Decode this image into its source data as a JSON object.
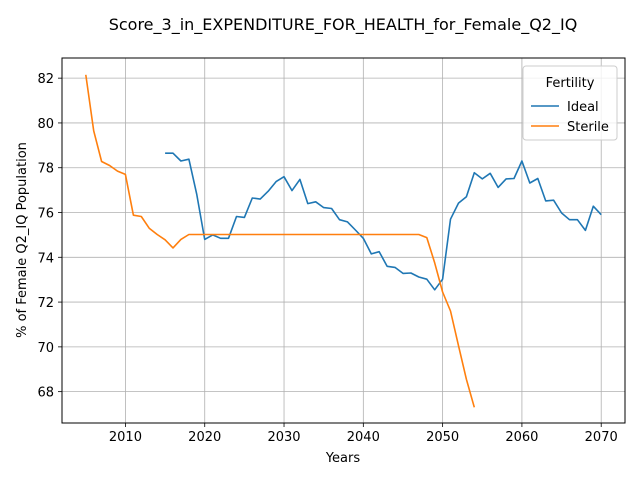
{
  "chart_data": {
    "type": "line",
    "title": "Score_3_in_EXPENDITURE_FOR_HEALTH_for_Female_Q2_IQ",
    "xlabel": "Years",
    "ylabel": "% of Female Q2_IQ Population",
    "xlim": [
      2002,
      2073
    ],
    "ylim": [
      66.6,
      82.9
    ],
    "xticks": [
      2010,
      2020,
      2030,
      2040,
      2050,
      2060,
      2070
    ],
    "yticks": [
      68,
      70,
      72,
      74,
      76,
      78,
      80,
      82
    ],
    "grid": true,
    "legend": {
      "title": "Fertility",
      "placement": "top-right"
    },
    "series": [
      {
        "name": "Ideal",
        "color": "#1f77b4",
        "x": [
          2015,
          2016,
          2017,
          2018,
          2019,
          2020,
          2021,
          2022,
          2023,
          2024,
          2025,
          2026,
          2027,
          2028,
          2029,
          2030,
          2031,
          2032,
          2033,
          2034,
          2035,
          2036,
          2037,
          2038,
          2039,
          2040,
          2041,
          2042,
          2043,
          2044,
          2045,
          2046,
          2047,
          2048,
          2049,
          2050,
          2051,
          2052,
          2053,
          2054,
          2055,
          2056,
          2057,
          2058,
          2059,
          2060,
          2061,
          2062,
          2063,
          2064,
          2065,
          2066,
          2067,
          2068,
          2069,
          2070
        ],
        "y": [
          78.65,
          78.65,
          78.3,
          78.38,
          76.8,
          74.8,
          75.0,
          74.85,
          74.85,
          75.82,
          75.78,
          76.65,
          76.6,
          76.95,
          77.38,
          77.6,
          76.98,
          77.48,
          76.4,
          76.48,
          76.22,
          76.18,
          75.68,
          75.58,
          75.22,
          74.85,
          74.15,
          74.25,
          73.6,
          73.55,
          73.28,
          73.3,
          73.12,
          73.02,
          72.55,
          73.02,
          75.7,
          76.42,
          76.7,
          77.78,
          77.5,
          77.75,
          77.12,
          77.5,
          77.52,
          78.3,
          77.32,
          77.52,
          76.52,
          76.55,
          75.98,
          75.68,
          75.68,
          75.2,
          76.28,
          75.9
        ]
      },
      {
        "name": "Sterile",
        "color": "#ff7f0e",
        "x": [
          2005,
          2006,
          2007,
          2008,
          2009,
          2010,
          2011,
          2012,
          2013,
          2014,
          2015,
          2016,
          2017,
          2018,
          2019,
          2020,
          2021,
          2022,
          2023,
          2024,
          2025,
          2026,
          2027,
          2028,
          2029,
          2030,
          2031,
          2032,
          2033,
          2034,
          2035,
          2036,
          2037,
          2038,
          2039,
          2040,
          2041,
          2042,
          2043,
          2044,
          2045,
          2046,
          2047,
          2048,
          2049,
          2050,
          2051,
          2052,
          2053,
          2054
        ],
        "y": [
          82.15,
          79.65,
          78.28,
          78.1,
          77.85,
          77.7,
          75.88,
          75.82,
          75.3,
          75.02,
          74.78,
          74.42,
          74.8,
          75.02,
          75.02,
          75.02,
          75.02,
          75.02,
          75.02,
          75.02,
          75.02,
          75.02,
          75.02,
          75.02,
          75.02,
          75.02,
          75.02,
          75.02,
          75.02,
          75.02,
          75.02,
          75.02,
          75.02,
          75.02,
          75.02,
          75.02,
          75.02,
          75.02,
          75.02,
          75.02,
          75.02,
          75.02,
          75.02,
          74.88,
          73.75,
          72.45,
          71.6,
          70.05,
          68.55,
          67.3
        ]
      }
    ]
  }
}
